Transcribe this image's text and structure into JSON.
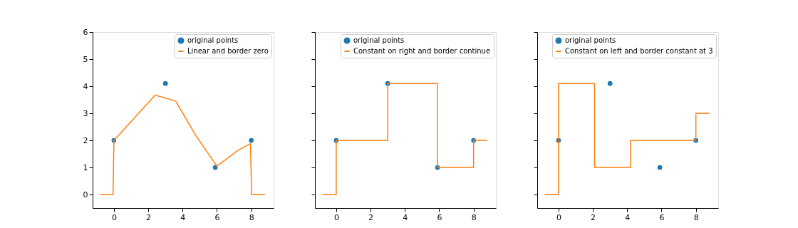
{
  "chart_data": [
    {
      "type": "line",
      "xlim": [
        -1.24,
        9.3
      ],
      "ylim": [
        -0.5,
        6
      ],
      "xticks": [
        0,
        2,
        4,
        6,
        8
      ],
      "yticks": [
        0,
        1,
        2,
        3,
        4,
        5,
        6
      ],
      "grid": false,
      "legend": "top right",
      "series": [
        {
          "name": "original points",
          "type": "scatter",
          "color": "#1f77b4",
          "marker": "circle",
          "x": [
            0,
            3,
            5.9,
            8
          ],
          "values": [
            2,
            4.1,
            1,
            2
          ]
        },
        {
          "name": "Linear and border zero",
          "type": "line",
          "color": "#ff7f0e",
          "x": [
            -0.8,
            -0.05,
            0,
            2.4,
            3.6,
            4.8,
            6,
            7.2,
            7.95,
            8.02,
            8.8
          ],
          "values": [
            0,
            0,
            2,
            3.67,
            3.45,
            2.15,
            1.05,
            1.62,
            1.88,
            0,
            0
          ]
        }
      ]
    },
    {
      "type": "line",
      "xlim": [
        -1.24,
        9.3
      ],
      "ylim": [
        -0.5,
        6
      ],
      "xticks": [
        0,
        2,
        4,
        6,
        8
      ],
      "yticks": [
        0,
        1,
        2,
        3,
        4,
        5,
        6
      ],
      "grid": false,
      "legend": "top",
      "tick_labels": "x",
      "series": [
        {
          "name": "original points",
          "type": "scatter",
          "color": "#1f77b4",
          "marker": "circle",
          "x": [
            0,
            3,
            5.9,
            8
          ],
          "values": [
            2,
            4.1,
            1,
            2
          ]
        },
        {
          "name": "Constant on right and border continue",
          "type": "step",
          "color": "#ff7f0e",
          "x": [
            -0.8,
            0,
            3,
            5.9,
            8,
            8.8
          ],
          "values": [
            0,
            2,
            4.1,
            1,
            2,
            2
          ]
        }
      ]
    },
    {
      "type": "line",
      "xlim": [
        -1.24,
        9.3
      ],
      "ylim": [
        -0.5,
        6
      ],
      "xticks": [
        0,
        2,
        4,
        6,
        8
      ],
      "yticks": [
        0,
        1,
        2,
        3,
        4,
        5,
        6
      ],
      "grid": false,
      "legend": "top",
      "tick_labels": "x",
      "series": [
        {
          "name": "original points",
          "type": "scatter",
          "color": "#1f77b4",
          "marker": "circle",
          "x": [
            0,
            3,
            5.9,
            8
          ],
          "values": [
            2,
            4.1,
            1,
            2
          ]
        },
        {
          "name": "Constant on left and border constant at 3",
          "type": "step",
          "color": "#ff7f0e",
          "x": [
            -0.8,
            0,
            2.1,
            4.2,
            8,
            8.8
          ],
          "values": [
            0,
            4.1,
            1,
            2,
            3,
            3
          ]
        }
      ]
    }
  ]
}
